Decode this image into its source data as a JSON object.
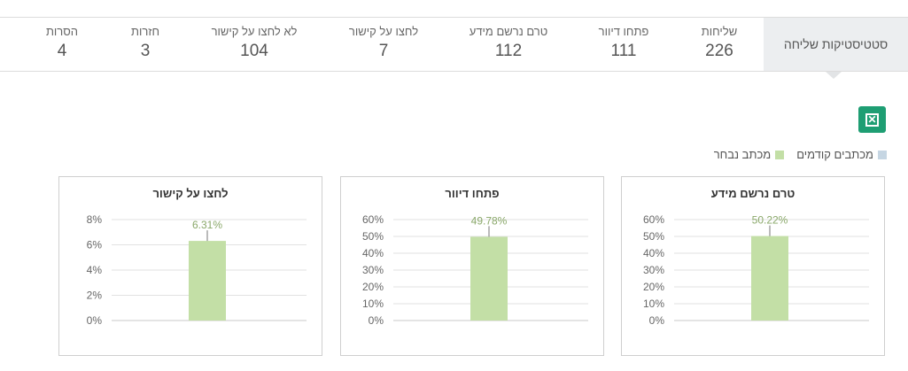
{
  "stats_tab": {
    "label": "סטטיסטיקות שליחה"
  },
  "stats": [
    {
      "label": "שליחות",
      "value": "226"
    },
    {
      "label": "פתחו דיוור",
      "value": "111"
    },
    {
      "label": "טרם נרשם מידע",
      "value": "112"
    },
    {
      "label": "לחצו על קישור",
      "value": "7"
    },
    {
      "label": "לא לחצו על קישור",
      "value": "104"
    },
    {
      "label": "חזרות",
      "value": "3"
    },
    {
      "label": "הסרות",
      "value": "4"
    }
  ],
  "export_icon": "excel-icon",
  "legend": [
    {
      "label": "מכתב נבחר",
      "color": "#c3dfa6"
    },
    {
      "label": "מכתבים קודמים",
      "color": "#c6d6e3"
    }
  ],
  "chart_data": [
    {
      "type": "bar",
      "title": "טרם נרשם מידע",
      "categories": [
        ""
      ],
      "values": [
        50.22
      ],
      "data_labels": [
        "50.22%"
      ],
      "ylim": [
        0,
        60
      ],
      "yticks": [
        "60%",
        "50%",
        "40%",
        "30%",
        "20%",
        "10%",
        "0%"
      ],
      "grid": true
    },
    {
      "type": "bar",
      "title": "פתחו דיוור",
      "categories": [
        ""
      ],
      "values": [
        49.78
      ],
      "data_labels": [
        "49.78%"
      ],
      "ylim": [
        0,
        60
      ],
      "yticks": [
        "60%",
        "50%",
        "40%",
        "30%",
        "20%",
        "10%",
        "0%"
      ],
      "grid": true
    },
    {
      "type": "bar",
      "title": "לחצו על קישור",
      "categories": [
        ""
      ],
      "values": [
        6.31
      ],
      "data_labels": [
        "6.31%"
      ],
      "ylim": [
        0,
        8
      ],
      "yticks": [
        "8%",
        "6%",
        "4%",
        "2%",
        "0%"
      ],
      "grid": true
    }
  ]
}
